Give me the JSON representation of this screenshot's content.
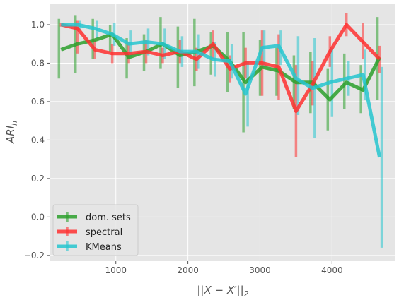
{
  "chart_data": {
    "type": "line",
    "style": "ggplot",
    "title": "",
    "xlabel": "||X − X′||",
    "xlabel_sub": "2",
    "ylabel": "ARI",
    "ylabel_sub": "h",
    "xlim": [
      80,
      4880
    ],
    "ylim": [
      -0.23,
      1.11
    ],
    "x_ticks": [
      1000,
      2000,
      3000,
      4000
    ],
    "y_ticks": [
      -0.2,
      0.0,
      0.2,
      0.4,
      0.6,
      0.8,
      1.0
    ],
    "y_tick_labels": [
      "−0.2",
      "0.0",
      "0.2",
      "0.4",
      "0.6",
      "0.8",
      "1.0"
    ],
    "grid": true,
    "legend_position": "lower-left",
    "x": [
      240,
      470,
      710,
      950,
      1180,
      1420,
      1650,
      1890,
      2120,
      2350,
      2580,
      2800,
      3030,
      3260,
      3500,
      3730,
      3970,
      4200,
      4430,
      4660
    ],
    "series": [
      {
        "name": "dom. sets",
        "color": "#2ca02c",
        "values": [
          0.87,
          0.9,
          0.92,
          0.95,
          0.83,
          0.86,
          0.9,
          0.84,
          0.86,
          0.89,
          0.81,
          0.7,
          0.78,
          0.76,
          0.7,
          0.7,
          0.61,
          0.7,
          0.66,
          0.83
        ],
        "err_low": [
          0.72,
          0.75,
          0.82,
          0.86,
          0.72,
          0.76,
          0.77,
          0.67,
          0.68,
          0.74,
          0.65,
          0.44,
          0.63,
          0.63,
          0.56,
          0.54,
          0.45,
          0.56,
          0.54,
          0.61
        ],
        "err_high": [
          1.03,
          1.05,
          1.03,
          1.0,
          0.93,
          0.95,
          1.04,
          0.99,
          1.03,
          0.96,
          0.96,
          0.96,
          0.92,
          0.88,
          0.84,
          0.86,
          0.77,
          0.85,
          0.79,
          1.04
        ]
      },
      {
        "name": "spectral",
        "color": "#ff3030",
        "values": [
          1.0,
          0.98,
          0.87,
          0.85,
          0.85,
          0.86,
          0.84,
          0.86,
          0.82,
          0.9,
          0.77,
          0.8,
          0.8,
          0.78,
          0.55,
          0.69,
          0.86,
          1.0,
          0.91,
          0.82
        ],
        "err_low": [
          0.99,
          0.85,
          0.82,
          0.8,
          0.8,
          0.8,
          0.8,
          0.8,
          0.76,
          0.82,
          0.7,
          0.72,
          0.63,
          0.61,
          0.31,
          0.58,
          0.78,
          0.94,
          0.82,
          0.75
        ],
        "err_high": [
          1.01,
          1.02,
          0.92,
          0.9,
          0.91,
          0.92,
          0.88,
          0.92,
          0.88,
          0.97,
          0.84,
          0.88,
          0.97,
          0.95,
          0.79,
          0.81,
          0.94,
          1.06,
          1.01,
          0.89
        ]
      },
      {
        "name": "KMeans",
        "color": "#26c6cf",
        "values": [
          1.0,
          1.0,
          0.98,
          0.95,
          0.9,
          0.91,
          0.9,
          0.86,
          0.86,
          0.82,
          0.81,
          0.64,
          0.88,
          0.89,
          0.72,
          0.67,
          0.7,
          0.72,
          0.74,
          0.31
        ],
        "err_low": [
          0.99,
          0.97,
          0.93,
          0.89,
          0.83,
          0.84,
          0.82,
          0.78,
          0.77,
          0.73,
          0.72,
          0.47,
          0.78,
          0.79,
          0.53,
          0.41,
          0.52,
          0.63,
          0.61,
          -0.16
        ],
        "err_high": [
          1.01,
          1.02,
          1.02,
          1.01,
          0.97,
          0.98,
          0.98,
          0.94,
          0.95,
          0.91,
          0.9,
          0.81,
          0.97,
          0.97,
          0.94,
          0.93,
          0.88,
          0.81,
          0.87,
          0.78
        ]
      }
    ]
  }
}
